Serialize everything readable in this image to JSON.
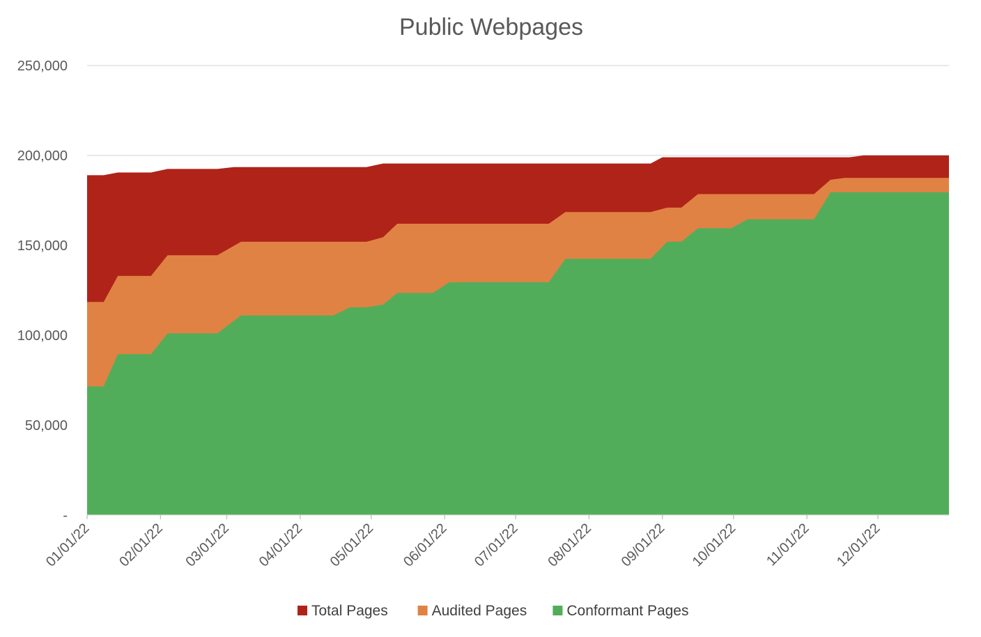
{
  "chart_data": {
    "type": "area",
    "stacking": "overlapping",
    "title": "Public Webpages",
    "xlabel": "",
    "ylabel": "",
    "ylim": [
      0,
      250000
    ],
    "y_ticks": [
      {
        "value": 0,
        "label": "-"
      },
      {
        "value": 50000,
        "label": "50,000"
      },
      {
        "value": 100000,
        "label": "100,000"
      },
      {
        "value": 150000,
        "label": "150,000"
      },
      {
        "value": 200000,
        "label": "200,000"
      },
      {
        "value": 250000,
        "label": "250,000"
      }
    ],
    "x_range": [
      "2022-01-01",
      "2022-12-31"
    ],
    "x_ticks": [
      {
        "date": "2022-01-01",
        "label": "01/01/22"
      },
      {
        "date": "2022-02-01",
        "label": "02/01/22"
      },
      {
        "date": "2022-03-01",
        "label": "03/01/22"
      },
      {
        "date": "2022-04-01",
        "label": "04/01/22"
      },
      {
        "date": "2022-05-01",
        "label": "05/01/22"
      },
      {
        "date": "2022-06-01",
        "label": "06/01/22"
      },
      {
        "date": "2022-07-01",
        "label": "07/01/22"
      },
      {
        "date": "2022-08-01",
        "label": "08/01/22"
      },
      {
        "date": "2022-09-01",
        "label": "09/01/22"
      },
      {
        "date": "2022-10-01",
        "label": "10/01/22"
      },
      {
        "date": "2022-11-01",
        "label": "11/01/22"
      },
      {
        "date": "2022-12-01",
        "label": "12/01/22"
      }
    ],
    "grid": {
      "horizontal": true,
      "vertical": false
    },
    "legend_position": "bottom",
    "series": [
      {
        "name": "Total Pages",
        "color": "#B02318",
        "points": [
          {
            "x": "2022-01-01",
            "y": 189000
          },
          {
            "x": "2022-01-08",
            "y": 189000
          },
          {
            "x": "2022-01-14",
            "y": 190500
          },
          {
            "x": "2022-01-28",
            "y": 190500
          },
          {
            "x": "2022-02-04",
            "y": 192500
          },
          {
            "x": "2022-02-25",
            "y": 192500
          },
          {
            "x": "2022-03-04",
            "y": 193500
          },
          {
            "x": "2022-04-29",
            "y": 193500
          },
          {
            "x": "2022-05-06",
            "y": 195500
          },
          {
            "x": "2022-08-27",
            "y": 195500
          },
          {
            "x": "2022-09-01",
            "y": 199000
          },
          {
            "x": "2022-11-19",
            "y": 199000
          },
          {
            "x": "2022-11-25",
            "y": 200000
          },
          {
            "x": "2022-12-31",
            "y": 200000
          }
        ]
      },
      {
        "name": "Audited Pages",
        "color": "#E08244",
        "points": [
          {
            "x": "2022-01-01",
            "y": 118500
          },
          {
            "x": "2022-01-08",
            "y": 118500
          },
          {
            "x": "2022-01-14",
            "y": 133000
          },
          {
            "x": "2022-01-28",
            "y": 133000
          },
          {
            "x": "2022-02-04",
            "y": 144500
          },
          {
            "x": "2022-02-25",
            "y": 144500
          },
          {
            "x": "2022-03-07",
            "y": 152000
          },
          {
            "x": "2022-04-29",
            "y": 152000
          },
          {
            "x": "2022-05-06",
            "y": 154500
          },
          {
            "x": "2022-05-12",
            "y": 162000
          },
          {
            "x": "2022-07-15",
            "y": 162000
          },
          {
            "x": "2022-07-22",
            "y": 168500
          },
          {
            "x": "2022-08-27",
            "y": 168500
          },
          {
            "x": "2022-09-03",
            "y": 171000
          },
          {
            "x": "2022-09-09",
            "y": 171000
          },
          {
            "x": "2022-09-16",
            "y": 178500
          },
          {
            "x": "2022-11-04",
            "y": 178500
          },
          {
            "x": "2022-11-11",
            "y": 186500
          },
          {
            "x": "2022-11-17",
            "y": 187500
          },
          {
            "x": "2022-12-31",
            "y": 187500
          }
        ]
      },
      {
        "name": "Conformant Pages",
        "color": "#52AD5B",
        "points": [
          {
            "x": "2022-01-01",
            "y": 71500
          },
          {
            "x": "2022-01-08",
            "y": 71500
          },
          {
            "x": "2022-01-14",
            "y": 89500
          },
          {
            "x": "2022-01-28",
            "y": 89500
          },
          {
            "x": "2022-02-04",
            "y": 101000
          },
          {
            "x": "2022-02-25",
            "y": 101000
          },
          {
            "x": "2022-03-07",
            "y": 111000
          },
          {
            "x": "2022-04-15",
            "y": 111000
          },
          {
            "x": "2022-04-22",
            "y": 115500
          },
          {
            "x": "2022-04-29",
            "y": 115500
          },
          {
            "x": "2022-05-06",
            "y": 117000
          },
          {
            "x": "2022-05-12",
            "y": 123500
          },
          {
            "x": "2022-05-27",
            "y": 123500
          },
          {
            "x": "2022-06-03",
            "y": 129500
          },
          {
            "x": "2022-07-15",
            "y": 129500
          },
          {
            "x": "2022-07-22",
            "y": 142500
          },
          {
            "x": "2022-08-27",
            "y": 142500
          },
          {
            "x": "2022-09-03",
            "y": 152000
          },
          {
            "x": "2022-09-09",
            "y": 152000
          },
          {
            "x": "2022-09-16",
            "y": 159500
          },
          {
            "x": "2022-09-30",
            "y": 159500
          },
          {
            "x": "2022-10-07",
            "y": 164500
          },
          {
            "x": "2022-11-04",
            "y": 164500
          },
          {
            "x": "2022-11-11",
            "y": 179500
          },
          {
            "x": "2022-12-31",
            "y": 179500
          }
        ]
      }
    ]
  }
}
